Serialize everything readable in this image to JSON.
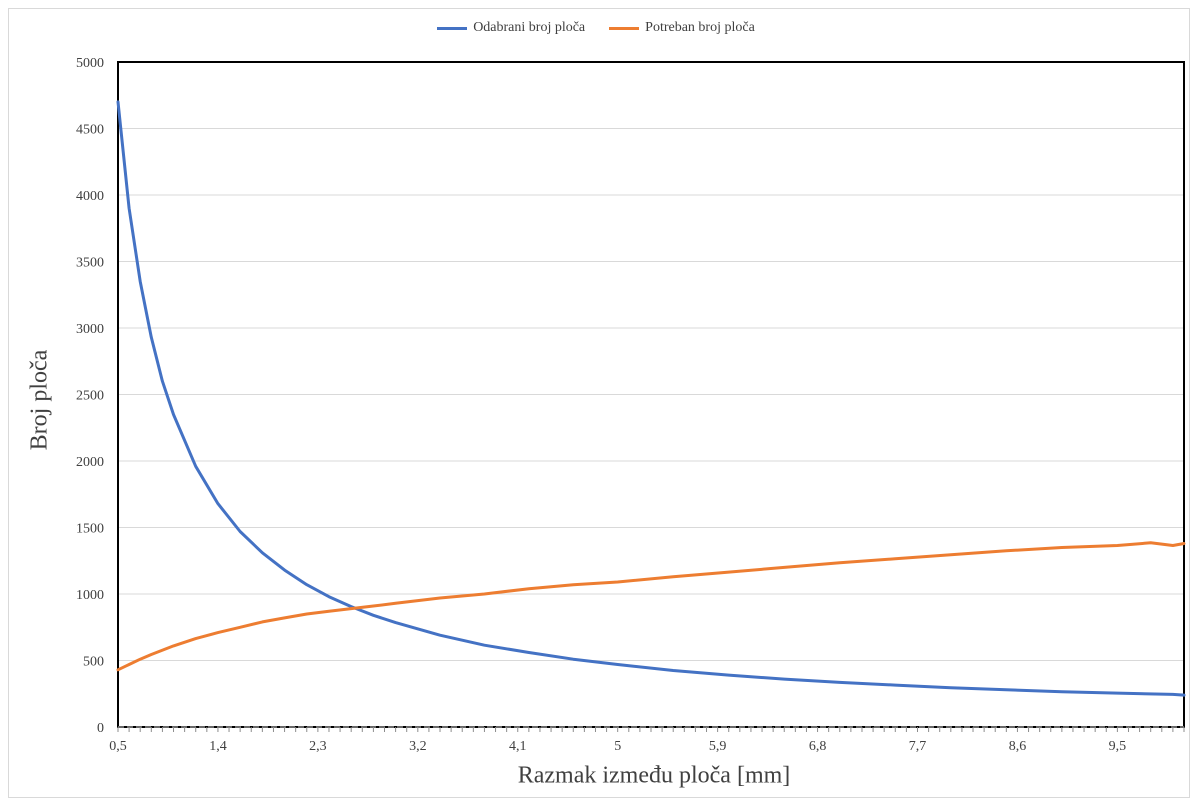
{
  "chart_data": {
    "type": "line",
    "xlabel": "Razmak između ploča [mm]",
    "ylabel": "Broj ploča",
    "ylim": [
      0,
      5000
    ],
    "xlim": [
      0.5,
      10.1
    ],
    "y_ticks": [
      0,
      500,
      1000,
      1500,
      2000,
      2500,
      3000,
      3500,
      4000,
      4500,
      5000
    ],
    "x_tick_labels": [
      "0,5",
      "1,4",
      "2,3",
      "3,2",
      "4,1",
      "5",
      "5,9",
      "6,8",
      "7,7",
      "8,6",
      "9,5"
    ],
    "x_tick_values": [
      0.5,
      1.4,
      2.3,
      3.2,
      4.1,
      5.0,
      5.9,
      6.8,
      7.7,
      8.6,
      9.5
    ],
    "grid": true,
    "legend_position": "top",
    "series": [
      {
        "name": "Odabrani broj ploča",
        "color": "#4472C4",
        "x": [
          0.5,
          0.6,
          0.7,
          0.8,
          0.9,
          1.0,
          1.2,
          1.4,
          1.6,
          1.8,
          2.0,
          2.2,
          2.4,
          2.6,
          2.8,
          3.0,
          3.4,
          3.8,
          4.2,
          4.6,
          5.0,
          5.5,
          6.0,
          6.5,
          7.0,
          7.5,
          8.0,
          8.5,
          9.0,
          9.5,
          10.0,
          10.1
        ],
        "values": [
          4700,
          3900,
          3350,
          2930,
          2600,
          2350,
          1960,
          1680,
          1470,
          1310,
          1180,
          1070,
          980,
          905,
          840,
          785,
          690,
          615,
          560,
          510,
          470,
          425,
          390,
          360,
          335,
          315,
          295,
          280,
          265,
          255,
          245,
          240
        ]
      },
      {
        "name": "Potreban broj ploča",
        "color": "#ED7D31",
        "x": [
          0.5,
          0.6,
          0.7,
          0.8,
          1.0,
          1.2,
          1.4,
          1.6,
          1.8,
          2.0,
          2.2,
          2.4,
          2.6,
          2.8,
          3.0,
          3.4,
          3.8,
          4.2,
          4.6,
          5.0,
          5.5,
          6.0,
          6.5,
          7.0,
          7.5,
          8.0,
          8.5,
          9.0,
          9.5,
          9.8,
          10.0,
          10.1
        ],
        "values": [
          430,
          470,
          510,
          545,
          610,
          665,
          710,
          750,
          790,
          820,
          850,
          870,
          890,
          910,
          930,
          970,
          1000,
          1040,
          1070,
          1090,
          1130,
          1165,
          1200,
          1235,
          1265,
          1295,
          1325,
          1350,
          1365,
          1385,
          1365,
          1380
        ]
      }
    ]
  }
}
